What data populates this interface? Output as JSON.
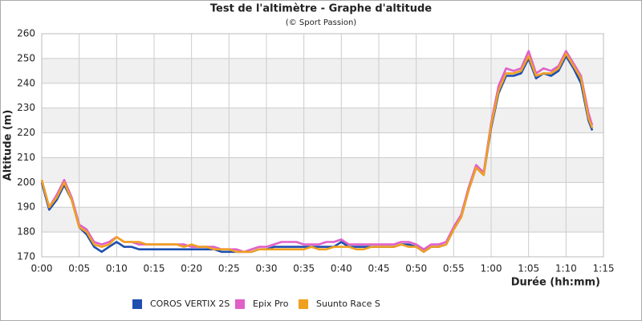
{
  "chart_data": {
    "type": "line",
    "title": "Test de l'altimètre - Graphe d'altitude",
    "subtitle": "(© Sport Passion)",
    "x_label": "Durée (hh:mm)",
    "y_label": "Altitude (m)",
    "x": [
      0,
      1,
      2,
      3,
      4,
      5,
      6,
      7,
      8,
      9,
      10,
      11,
      12,
      13,
      14,
      15,
      16,
      17,
      18,
      19,
      20,
      21,
      22,
      23,
      24,
      25,
      26,
      27,
      28,
      29,
      30,
      31,
      32,
      33,
      34,
      35,
      36,
      37,
      38,
      39,
      40,
      41,
      42,
      43,
      44,
      45,
      46,
      47,
      48,
      49,
      50,
      51,
      52,
      53,
      54,
      55,
      56,
      57,
      58,
      59,
      60,
      61,
      62,
      63,
      64,
      65,
      66,
      67,
      68,
      69,
      70,
      71,
      72,
      73,
      73.5
    ],
    "series": [
      {
        "name": "COROS VERTIX 2S",
        "color": "#1f4fb0",
        "values": [
          200,
          189,
          193,
          199,
          193,
          182,
          179,
          174,
          172,
          174,
          176,
          174,
          174,
          173,
          173,
          173,
          173,
          173,
          173,
          173,
          173,
          173,
          173,
          173,
          172,
          172,
          172,
          172,
          172,
          173,
          173,
          174,
          174,
          174,
          174,
          174,
          174,
          174,
          174,
          174,
          176,
          174,
          174,
          174,
          174,
          174,
          174,
          174,
          175,
          175,
          174,
          172,
          174,
          174,
          175,
          181,
          186,
          197,
          206,
          203,
          222,
          236,
          243,
          243,
          244,
          250,
          242,
          244,
          243,
          245,
          251,
          246,
          240,
          225,
          221
        ]
      },
      {
        "name": "Epix Pro",
        "color": "#e060c8",
        "values": [
          201,
          190,
          195,
          201,
          194,
          183,
          181,
          176,
          175,
          176,
          178,
          176,
          176,
          175,
          175,
          175,
          175,
          175,
          175,
          175,
          174,
          174,
          174,
          174,
          173,
          173,
          173,
          172,
          173,
          174,
          174,
          175,
          176,
          176,
          176,
          175,
          175,
          175,
          176,
          176,
          177,
          175,
          175,
          175,
          175,
          175,
          175,
          175,
          176,
          176,
          175,
          173,
          175,
          175,
          176,
          182,
          187,
          198,
          207,
          204,
          224,
          239,
          246,
          245,
          246,
          253,
          244,
          246,
          245,
          247,
          253,
          248,
          243,
          228,
          223
        ]
      },
      {
        "name": "Suunto Race S",
        "color": "#f0a020",
        "values": [
          201,
          190,
          194,
          200,
          193,
          182,
          180,
          175,
          174,
          175,
          178,
          176,
          176,
          176,
          175,
          175,
          175,
          175,
          175,
          174,
          175,
          174,
          174,
          173,
          173,
          173,
          172,
          172,
          172,
          173,
          173,
          173,
          173,
          173,
          173,
          173,
          174,
          173,
          173,
          174,
          174,
          174,
          173,
          173,
          174,
          174,
          174,
          174,
          175,
          174,
          174,
          172,
          174,
          174,
          175,
          181,
          186,
          197,
          206,
          203,
          223,
          237,
          244,
          244,
          245,
          251,
          243,
          244,
          244,
          246,
          252,
          247,
          242,
          226,
          222
        ]
      }
    ],
    "xlim": [
      0,
      75
    ],
    "xticks": [
      {
        "value": 0,
        "label": "0:00"
      },
      {
        "value": 5,
        "label": "0:05"
      },
      {
        "value": 10,
        "label": "0:10"
      },
      {
        "value": 15,
        "label": "0:15"
      },
      {
        "value": 20,
        "label": "0:20"
      },
      {
        "value": 25,
        "label": "0:25"
      },
      {
        "value": 30,
        "label": "0:30"
      },
      {
        "value": 35,
        "label": "0:35"
      },
      {
        "value": 40,
        "label": "0:40"
      },
      {
        "value": 45,
        "label": "0:45"
      },
      {
        "value": 50,
        "label": "0:50"
      },
      {
        "value": 55,
        "label": "0:55"
      },
      {
        "value": 60,
        "label": "1:00"
      },
      {
        "value": 65,
        "label": "1:05"
      },
      {
        "value": 70,
        "label": "1:10"
      },
      {
        "value": 75,
        "label": "1:15"
      }
    ],
    "ylim": [
      170,
      260
    ],
    "yticks": [
      170,
      180,
      190,
      200,
      210,
      220,
      230,
      240,
      250,
      260
    ],
    "grid": true,
    "legend": "bottom"
  }
}
